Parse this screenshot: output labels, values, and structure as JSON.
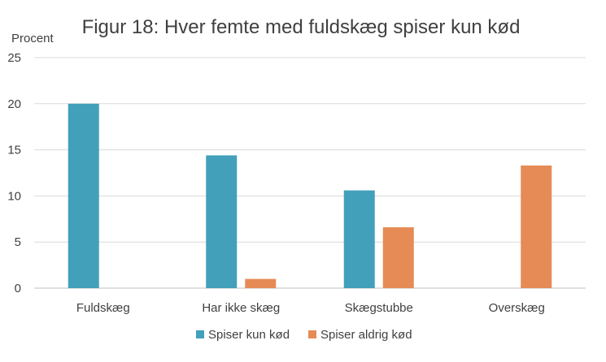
{
  "chart_data": {
    "type": "bar",
    "title": "Figur 18: Hver femte med fuldskæg spiser kun kød",
    "xlabel": "",
    "ylabel": "Procent",
    "ylim": [
      0,
      25
    ],
    "yticks": [
      0,
      5,
      10,
      15,
      20,
      25
    ],
    "grid": true,
    "legend_position": "bottom",
    "categories": [
      "Fuldskæg",
      "Har ikke skæg",
      "Skægstubbe",
      "Overskæg"
    ],
    "series": [
      {
        "name": "Spiser kun kød",
        "color": "#42a0bb",
        "values": [
          20.0,
          14.4,
          10.6,
          0
        ]
      },
      {
        "name": "Spiser aldrig kød",
        "color": "#e68b55",
        "values": [
          0,
          1.0,
          6.6,
          13.3
        ]
      }
    ]
  }
}
